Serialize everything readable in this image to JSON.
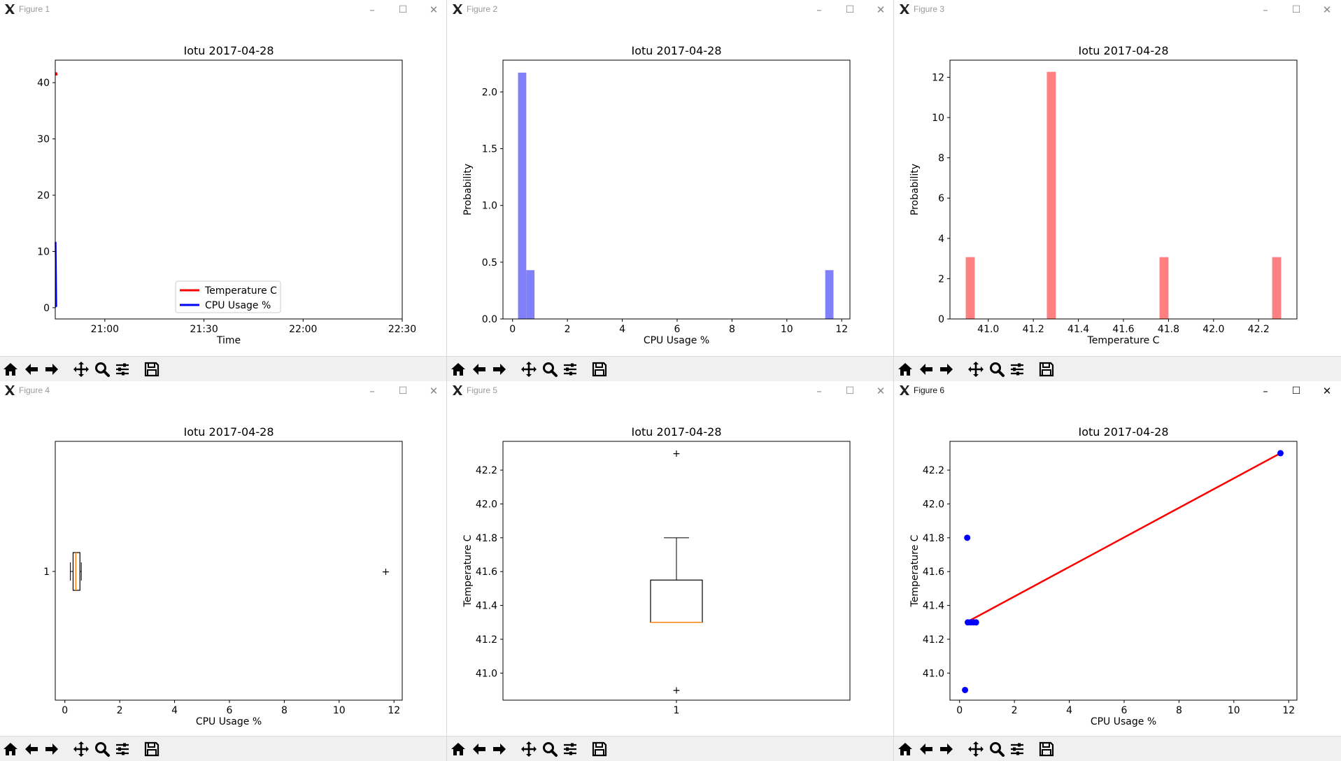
{
  "windows": [
    {
      "id": "fig1",
      "title": "Figure 1",
      "active": false,
      "chart_data": {
        "type": "line",
        "title": "Iotu 2017-04-28",
        "xlabel": "Time",
        "ylabel": "",
        "x_ticks": [
          "21:00",
          "21:30",
          "22:00",
          "22:30"
        ],
        "y_ticks": [
          0,
          10,
          20,
          30,
          40
        ],
        "xlim_minutes": [
          1245,
          1350
        ],
        "ylim": [
          -2,
          44
        ],
        "series": [
          {
            "name": "Temperature C",
            "color": "#ff0000",
            "x_minutes": [
              1245.1,
              1245.3,
              1245.5
            ],
            "values": [
              41.3,
              41.8,
              41.3
            ]
          },
          {
            "name": "CPU Usage %",
            "color": "#0000ff",
            "x_minutes": [
              1245.1,
              1245.3,
              1245.5
            ],
            "values": [
              11.7,
              0.3,
              0.4
            ]
          }
        ],
        "legend": "lower-center"
      }
    },
    {
      "id": "fig2",
      "title": "Figure 2",
      "active": false,
      "chart_data": {
        "type": "bar",
        "title": "Iotu 2017-04-28",
        "xlabel": "CPU Usage %",
        "ylabel": "Probability",
        "x_ticks": [
          0,
          2,
          4,
          6,
          8,
          10,
          12
        ],
        "y_ticks": [
          "0.0",
          "0.5",
          "1.0",
          "1.5",
          "2.0"
        ],
        "xlim": [
          -0.35,
          12.3
        ],
        "ylim": [
          0,
          2.28
        ],
        "bins": [
          {
            "x0": 0.2,
            "x1": 0.5,
            "value": 2.17
          },
          {
            "x0": 0.5,
            "x1": 0.8,
            "value": 0.43
          },
          {
            "x0": 11.4,
            "x1": 11.7,
            "value": 0.43
          }
        ],
        "color": "#8080f8"
      }
    },
    {
      "id": "fig3",
      "title": "Figure 3",
      "active": false,
      "chart_data": {
        "type": "bar",
        "title": "Iotu 2017-04-28",
        "xlabel": "Temperature C",
        "ylabel": "Probability",
        "x_ticks": [
          "41.0",
          "41.2",
          "41.4",
          "41.6",
          "41.8",
          "42.0",
          "42.2"
        ],
        "y_ticks": [
          0,
          2,
          4,
          6,
          8,
          10,
          12
        ],
        "xlim": [
          40.83,
          42.37
        ],
        "ylim": [
          0,
          12.85
        ],
        "bins": [
          {
            "x0": 40.9,
            "x1": 40.94,
            "value": 3.07
          },
          {
            "x0": 41.26,
            "x1": 41.3,
            "value": 12.27
          },
          {
            "x0": 41.76,
            "x1": 41.8,
            "value": 3.07
          },
          {
            "x0": 42.26,
            "x1": 42.3,
            "value": 3.07
          }
        ],
        "color": "#ff8080"
      }
    },
    {
      "id": "fig4",
      "title": "Figure 4",
      "active": false,
      "chart_data": {
        "type": "box-horizontal",
        "title": "Iotu 2017-04-28",
        "xlabel": "CPU Usage %",
        "ylabel": "",
        "x_ticks": [
          0,
          2,
          4,
          6,
          8,
          10,
          12
        ],
        "y_ticks": [
          1
        ],
        "xlim": [
          -0.35,
          12.3
        ],
        "box": {
          "whisker_low": 0.2,
          "q1": 0.3,
          "median": 0.4,
          "q3": 0.55,
          "whisker_high": 0.6,
          "outliers": [
            11.7
          ]
        }
      }
    },
    {
      "id": "fig5",
      "title": "Figure 5",
      "active": false,
      "chart_data": {
        "type": "box",
        "title": "Iotu 2017-04-28",
        "xlabel": "",
        "ylabel": "Temperature C",
        "x_ticks": [
          1
        ],
        "y_ticks": [
          "41.0",
          "41.2",
          "41.4",
          "41.6",
          "41.8",
          "42.0",
          "42.2"
        ],
        "ylim": [
          40.84,
          42.37
        ],
        "box": {
          "whisker_low": 41.3,
          "q1": 41.3,
          "median": 41.3,
          "q3": 41.55,
          "whisker_high": 41.8,
          "outliers": [
            42.3,
            40.9
          ]
        }
      }
    },
    {
      "id": "fig6",
      "title": "Figure 6",
      "active": true,
      "chart_data": {
        "type": "scatter",
        "title": "Iotu 2017-04-28",
        "xlabel": "CPU Usage %",
        "ylabel": "Temperature C",
        "x_ticks": [
          0,
          2,
          4,
          6,
          8,
          10,
          12
        ],
        "y_ticks": [
          "41.0",
          "41.2",
          "41.4",
          "41.6",
          "41.8",
          "42.0",
          "42.2"
        ],
        "xlim": [
          -0.35,
          12.3
        ],
        "ylim": [
          40.84,
          42.37
        ],
        "points": [
          [
            0.2,
            40.9
          ],
          [
            0.28,
            41.8
          ],
          [
            0.3,
            41.3
          ],
          [
            0.4,
            41.3
          ],
          [
            0.5,
            41.3
          ],
          [
            0.6,
            41.3
          ],
          [
            11.7,
            42.3
          ]
        ],
        "fit_line": [
          [
            0.25,
            41.3
          ],
          [
            11.7,
            42.3
          ]
        ],
        "point_color": "#0000ff",
        "line_color": "#ff0000"
      }
    }
  ],
  "toolbar": [
    "home-icon",
    "back-icon",
    "forward-icon",
    "pan-icon",
    "zoom-icon",
    "configure-icon",
    "save-icon"
  ]
}
